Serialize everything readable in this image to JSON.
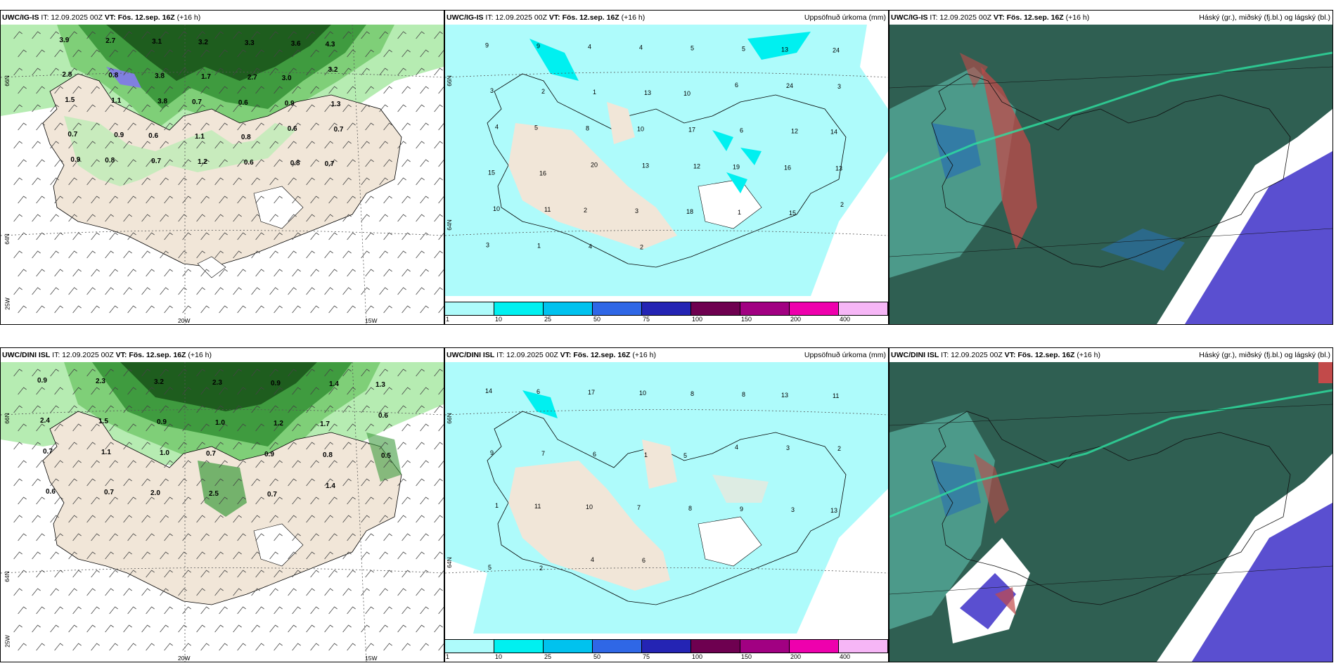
{
  "panels": [
    {
      "id": "ig-wind",
      "header_model": "UWC/IG-IS",
      "header_it": "IT: 12.09.2025 00Z",
      "header_vt_label": "VT:",
      "header_vt": "Fös. 12.sep. 16Z",
      "header_lead": "(+16 h)",
      "header_right": "",
      "lat_labels": [
        "66N",
        "64N"
      ],
      "lon_labels": [
        "25W",
        "20W",
        "15W"
      ],
      "values": [
        "3.9",
        "2.7",
        "3.1",
        "3.2",
        "3.3",
        "3.6",
        "4.3",
        "2.8",
        "0.8",
        "3.8",
        "1.7",
        "2.7",
        "3.0",
        "3.2",
        "1.5",
        "1.1",
        "3.8",
        "0.7",
        "0.6",
        "0.9",
        "1.3",
        "0.7",
        "0.9",
        "0.6",
        "1.1",
        "0.8",
        "0.6",
        "0.7",
        "0.9",
        "0.8",
        "0.7",
        "1.2",
        "0.6",
        "0.8",
        "0.7"
      ]
    },
    {
      "id": "ig-precip",
      "header_model": "UWC/IG-IS",
      "header_it": "IT: 12.09.2025 00Z",
      "header_vt_label": "VT:",
      "header_vt": "Fös. 12.sep. 16Z",
      "header_lead": "(+16 h)",
      "header_right": "Uppsöfnuð úrkoma (mm)",
      "lat_labels": [
        "66N",
        "64N"
      ],
      "values": [
        "9",
        "9",
        "4",
        "4",
        "5",
        "5",
        "13",
        "24",
        "3",
        "2",
        "1",
        "13",
        "10",
        "6",
        "24",
        "3",
        "4",
        "5",
        "8",
        "10",
        "17",
        "6",
        "12",
        "14",
        "15",
        "16",
        "20",
        "13",
        "12",
        "19",
        "16",
        "13",
        "10",
        "11",
        "2",
        "3",
        "18",
        "1",
        "15",
        "2",
        "3",
        "1",
        "4",
        "2"
      ]
    },
    {
      "id": "ig-cloud",
      "header_model": "UWC/IG-IS",
      "header_it": "IT: 12.09.2025 00Z",
      "header_vt_label": "VT:",
      "header_vt": "Fös. 12.sep. 16Z",
      "header_lead": "(+16 h)",
      "header_right": "Háský (gr.), miðský (fj.bl.) og lágský (bl.)"
    },
    {
      "id": "dini-wind",
      "header_model": "UWC/DINI ISL",
      "header_it": "IT: 12.09.2025 00Z",
      "header_vt_label": "VT:",
      "header_vt": "Fös. 12.sep. 16Z",
      "header_lead": "(+16 h)",
      "header_right": "",
      "lat_labels": [
        "66N",
        "64N"
      ],
      "lon_labels": [
        "25W",
        "20W",
        "15W"
      ],
      "values": [
        "0.9",
        "2.3",
        "3.2",
        "2.3",
        "0.9",
        "1.4",
        "1.3",
        "2.4",
        "1.5",
        "0.9",
        "1.0",
        "1.2",
        "1.7",
        "0.6",
        "0.7",
        "1.1",
        "1.0",
        "0.7",
        "0.9",
        "0.8",
        "0.5",
        "0.6",
        "0.7",
        "2.0",
        "2.5",
        "0.7",
        "1.4"
      ]
    },
    {
      "id": "dini-precip",
      "header_model": "UWC/DINI ISL",
      "header_it": "IT: 12.09.2025 00Z",
      "header_vt_label": "VT:",
      "header_vt": "Fös. 12.sep. 16Z",
      "header_lead": "(+16 h)",
      "header_right": "Uppsöfnuð úrkoma (mm)",
      "lat_labels": [
        "66N",
        "64N"
      ],
      "values": [
        "14",
        "6",
        "17",
        "10",
        "8",
        "8",
        "13",
        "11",
        "9",
        "7",
        "6",
        "1",
        "5",
        "4",
        "3",
        "2",
        "1",
        "11",
        "10",
        "7",
        "8",
        "9",
        "3",
        "13",
        "5",
        "2",
        "4",
        "6"
      ]
    },
    {
      "id": "dini-cloud",
      "header_model": "UWC/DINI ISL",
      "header_it": "IT: 12.09.2025 00Z",
      "header_vt_label": "VT:",
      "header_vt": "Fös. 12.sep. 16Z",
      "header_lead": "(+16 h)",
      "header_right": "Háský (gr.), miðský (fj.bl.) og lágský (bl.)"
    }
  ],
  "precip_scale": {
    "ticks": [
      "1",
      "10",
      "25",
      "50",
      "75",
      "100",
      "150",
      "200",
      "400"
    ],
    "colors": [
      "#aefbfb",
      "#00f0f0",
      "#00c2ee",
      "#2f67e6",
      "#2424b4",
      "#6e0050",
      "#a10082",
      "#ee00ad",
      "#f6b6f6"
    ]
  },
  "colors": {
    "land": "#f1e6d8",
    "wind_dark": "#1e5d1e",
    "wind_mid": "#3f9b3f",
    "wind_light": "#b6ecb2",
    "precip_light": "#aefbfb",
    "precip_mid": "#00f0f0",
    "cloud_high": "#3b6b5e",
    "cloud_mid": "#2a6fb0",
    "cloud_low": "#5a4fd0",
    "cloud_red": "#c24a4a"
  }
}
